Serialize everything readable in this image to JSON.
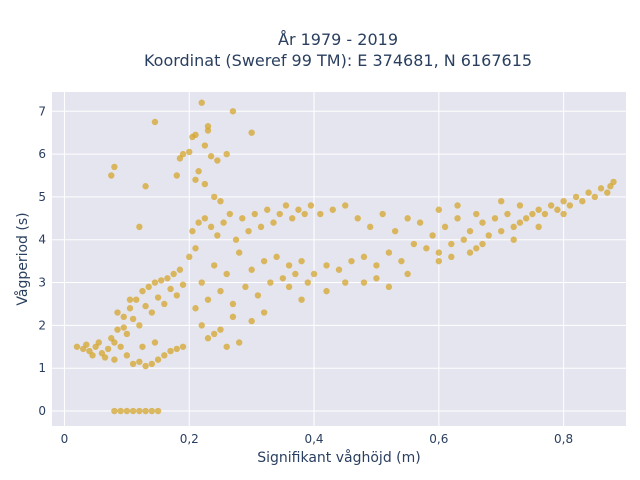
{
  "chart_data": {
    "type": "scatter",
    "title_lines": [
      "År 1979 - 2019",
      "Koordinat (Sweref 99 TM): E 374681, N 6167615"
    ],
    "xlabel": "Signifikant våghöjd (m)",
    "ylabel": "Vågperiod (s)",
    "xlim": [
      -0.02,
      0.9
    ],
    "ylim": [
      -0.35,
      7.45
    ],
    "x_ticks": [
      0,
      0.2,
      0.4,
      0.6,
      0.8
    ],
    "x_tick_labels": [
      "0",
      "0,2",
      "0,4",
      "0,6",
      "0,8"
    ],
    "y_ticks": [
      0,
      1,
      2,
      3,
      4,
      5,
      6,
      7
    ],
    "y_tick_labels": [
      "0",
      "1",
      "2",
      "3",
      "4",
      "5",
      "6",
      "7"
    ],
    "grid": true,
    "legend": "none",
    "marker_color": "#d4a424",
    "series": [
      {
        "points": [
          [
            0.02,
            1.5
          ],
          [
            0.03,
            1.45
          ],
          [
            0.035,
            1.55
          ],
          [
            0.04,
            1.4
          ],
          [
            0.045,
            1.3
          ],
          [
            0.05,
            1.5
          ],
          [
            0.055,
            1.6
          ],
          [
            0.06,
            1.35
          ],
          [
            0.065,
            1.25
          ],
          [
            0.07,
            1.45
          ],
          [
            0.075,
            1.7
          ],
          [
            0.08,
            1.2
          ],
          [
            0.085,
            1.9
          ],
          [
            0.09,
            1.5
          ],
          [
            0.095,
            2.2
          ],
          [
            0.1,
            1.3
          ],
          [
            0.105,
            2.4
          ],
          [
            0.11,
            1.1
          ],
          [
            0.115,
            2.6
          ],
          [
            0.12,
            1.15
          ],
          [
            0.125,
            2.8
          ],
          [
            0.13,
            1.05
          ],
          [
            0.135,
            2.9
          ],
          [
            0.14,
            1.1
          ],
          [
            0.145,
            3.0
          ],
          [
            0.15,
            1.2
          ],
          [
            0.155,
            3.05
          ],
          [
            0.16,
            1.3
          ],
          [
            0.165,
            3.1
          ],
          [
            0.17,
            1.4
          ],
          [
            0.175,
            3.2
          ],
          [
            0.18,
            1.45
          ],
          [
            0.185,
            3.3
          ],
          [
            0.19,
            1.5
          ],
          [
            0.1,
            1.8
          ],
          [
            0.12,
            2.0
          ],
          [
            0.14,
            2.3
          ],
          [
            0.16,
            2.5
          ],
          [
            0.18,
            2.7
          ],
          [
            0.08,
            1.6
          ],
          [
            0.095,
            1.95
          ],
          [
            0.11,
            2.15
          ],
          [
            0.13,
            2.45
          ],
          [
            0.15,
            2.65
          ],
          [
            0.17,
            2.85
          ],
          [
            0.19,
            2.95
          ],
          [
            0.085,
            2.3
          ],
          [
            0.105,
            2.6
          ],
          [
            0.125,
            1.5
          ],
          [
            0.145,
            1.6
          ],
          [
            0.2,
            3.6
          ],
          [
            0.205,
            4.2
          ],
          [
            0.21,
            3.8
          ],
          [
            0.215,
            4.4
          ],
          [
            0.22,
            3.0
          ],
          [
            0.225,
            4.5
          ],
          [
            0.23,
            2.6
          ],
          [
            0.235,
            4.3
          ],
          [
            0.24,
            3.4
          ],
          [
            0.245,
            4.1
          ],
          [
            0.25,
            2.8
          ],
          [
            0.255,
            4.4
          ],
          [
            0.26,
            3.2
          ],
          [
            0.265,
            4.6
          ],
          [
            0.27,
            2.5
          ],
          [
            0.275,
            4.0
          ],
          [
            0.28,
            3.7
          ],
          [
            0.285,
            4.5
          ],
          [
            0.29,
            2.9
          ],
          [
            0.295,
            4.2
          ],
          [
            0.3,
            3.3
          ],
          [
            0.305,
            4.6
          ],
          [
            0.31,
            2.7
          ],
          [
            0.315,
            4.3
          ],
          [
            0.32,
            3.5
          ],
          [
            0.325,
            4.7
          ],
          [
            0.33,
            3.0
          ],
          [
            0.335,
            4.4
          ],
          [
            0.34,
            3.6
          ],
          [
            0.345,
            4.6
          ],
          [
            0.35,
            3.1
          ],
          [
            0.355,
            4.8
          ],
          [
            0.36,
            3.4
          ],
          [
            0.365,
            4.5
          ],
          [
            0.37,
            3.2
          ],
          [
            0.375,
            4.7
          ],
          [
            0.38,
            3.5
          ],
          [
            0.385,
            4.6
          ],
          [
            0.39,
            3.0
          ],
          [
            0.395,
            4.8
          ],
          [
            0.22,
            2.0
          ],
          [
            0.24,
            1.8
          ],
          [
            0.26,
            1.5
          ],
          [
            0.28,
            1.6
          ],
          [
            0.3,
            2.1
          ],
          [
            0.32,
            2.3
          ],
          [
            0.25,
            1.9
          ],
          [
            0.27,
            2.2
          ],
          [
            0.23,
            1.7
          ],
          [
            0.21,
            2.4
          ],
          [
            0.4,
            3.2
          ],
          [
            0.41,
            4.6
          ],
          [
            0.42,
            3.4
          ],
          [
            0.43,
            4.7
          ],
          [
            0.44,
            3.3
          ],
          [
            0.45,
            4.8
          ],
          [
            0.46,
            3.5
          ],
          [
            0.47,
            4.5
          ],
          [
            0.48,
            3.6
          ],
          [
            0.49,
            4.3
          ],
          [
            0.5,
            3.4
          ],
          [
            0.51,
            4.6
          ],
          [
            0.52,
            3.7
          ],
          [
            0.53,
            4.2
          ],
          [
            0.54,
            3.5
          ],
          [
            0.55,
            4.5
          ],
          [
            0.56,
            3.9
          ],
          [
            0.57,
            4.4
          ],
          [
            0.58,
            3.8
          ],
          [
            0.59,
            4.1
          ],
          [
            0.6,
            3.7
          ],
          [
            0.61,
            4.3
          ],
          [
            0.62,
            3.9
          ],
          [
            0.63,
            4.5
          ],
          [
            0.64,
            4.0
          ],
          [
            0.65,
            4.2
          ],
          [
            0.66,
            3.8
          ],
          [
            0.67,
            4.4
          ],
          [
            0.68,
            4.1
          ],
          [
            0.69,
            4.5
          ],
          [
            0.7,
            4.2
          ],
          [
            0.71,
            4.6
          ],
          [
            0.72,
            4.3
          ],
          [
            0.73,
            4.4
          ],
          [
            0.74,
            4.5
          ],
          [
            0.75,
            4.6
          ],
          [
            0.76,
            4.7
          ],
          [
            0.77,
            4.6
          ],
          [
            0.78,
            4.8
          ],
          [
            0.79,
            4.7
          ],
          [
            0.8,
            4.9
          ],
          [
            0.81,
            4.8
          ],
          [
            0.82,
            5.0
          ],
          [
            0.83,
            4.9
          ],
          [
            0.84,
            5.1
          ],
          [
            0.85,
            5.0
          ],
          [
            0.86,
            5.2
          ],
          [
            0.87,
            5.1
          ],
          [
            0.875,
            5.25
          ],
          [
            0.88,
            5.35
          ],
          [
            0.45,
            3.0
          ],
          [
            0.5,
            3.1
          ],
          [
            0.55,
            3.2
          ],
          [
            0.6,
            3.5
          ],
          [
            0.65,
            3.7
          ],
          [
            0.52,
            2.9
          ],
          [
            0.48,
            3.0
          ],
          [
            0.42,
            2.8
          ],
          [
            0.38,
            2.6
          ],
          [
            0.36,
            2.9
          ],
          [
            0.6,
            4.7
          ],
          [
            0.63,
            4.8
          ],
          [
            0.66,
            4.6
          ],
          [
            0.7,
            4.9
          ],
          [
            0.73,
            4.8
          ],
          [
            0.62,
            3.6
          ],
          [
            0.67,
            3.9
          ],
          [
            0.72,
            4.0
          ],
          [
            0.76,
            4.3
          ],
          [
            0.8,
            4.6
          ],
          [
            0.08,
            0
          ],
          [
            0.09,
            0
          ],
          [
            0.1,
            0
          ],
          [
            0.11,
            0
          ],
          [
            0.12,
            0
          ],
          [
            0.13,
            0
          ],
          [
            0.14,
            0
          ],
          [
            0.15,
            0
          ],
          [
            0.075,
            5.5
          ],
          [
            0.08,
            5.7
          ],
          [
            0.13,
            5.25
          ],
          [
            0.145,
            6.75
          ],
          [
            0.12,
            4.3
          ],
          [
            0.18,
            5.5
          ],
          [
            0.185,
            5.9
          ],
          [
            0.19,
            6.0
          ],
          [
            0.2,
            6.05
          ],
          [
            0.205,
            6.4
          ],
          [
            0.21,
            5.4
          ],
          [
            0.215,
            5.6
          ],
          [
            0.22,
            7.2
          ],
          [
            0.225,
            6.2
          ],
          [
            0.23,
            6.55
          ],
          [
            0.235,
            5.95
          ],
          [
            0.24,
            5.0
          ],
          [
            0.245,
            5.85
          ],
          [
            0.26,
            6.0
          ],
          [
            0.27,
            7.0
          ],
          [
            0.3,
            6.5
          ],
          [
            0.23,
            6.65
          ],
          [
            0.21,
            6.45
          ],
          [
            0.225,
            5.3
          ],
          [
            0.25,
            4.9
          ]
        ]
      }
    ]
  }
}
